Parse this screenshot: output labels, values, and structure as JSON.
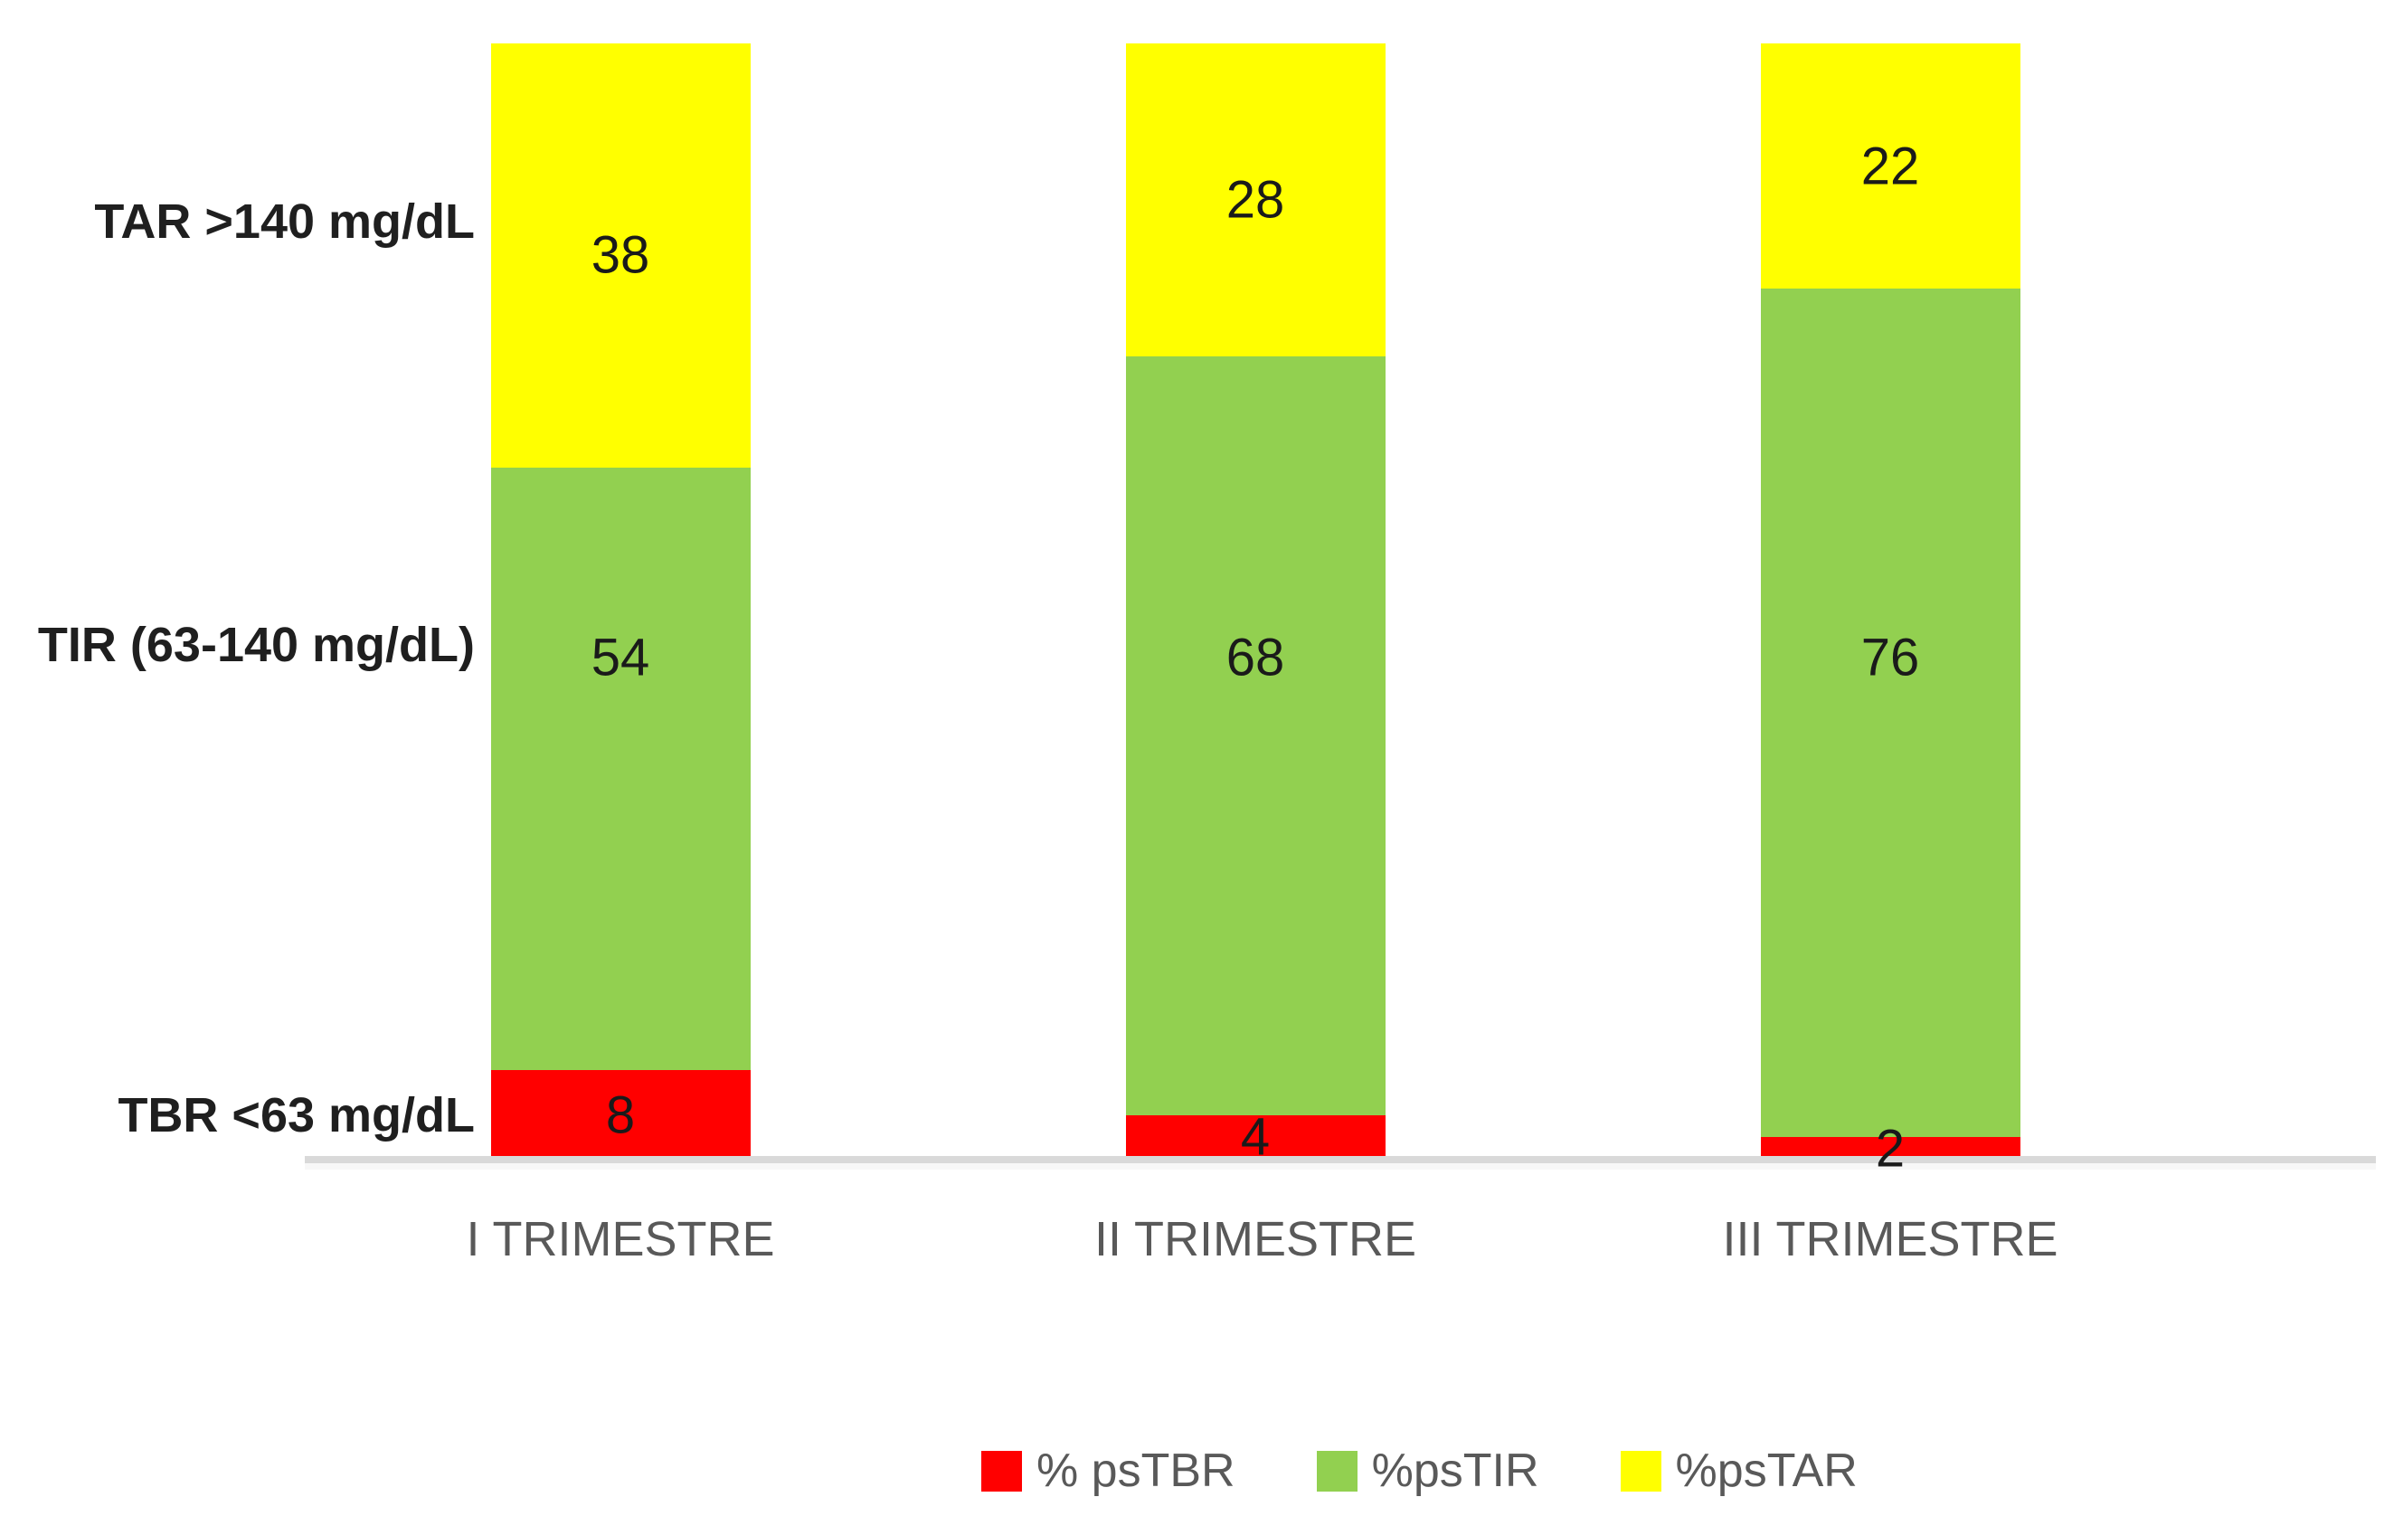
{
  "chart_data": {
    "type": "bar",
    "stacked": true,
    "orientation": "vertical",
    "title": "",
    "categories": [
      "I TRIMESTRE",
      "II TRIMESTRE",
      "III TRIMESTRE"
    ],
    "series": [
      {
        "key": "psTBR",
        "legend_label": "% psTBR",
        "row_label": "TBR <63 mg/dL",
        "color": "#FF0000",
        "values": [
          8,
          4,
          2
        ]
      },
      {
        "key": "psTIR",
        "legend_label": "%psTIR",
        "row_label": "TIR (63-140 mg/dL)",
        "color": "#92D050",
        "values": [
          54,
          68,
          76
        ]
      },
      {
        "key": "psTAR",
        "legend_label": "%psTAR",
        "row_label": "TAR >140 mg/dL",
        "color": "#FFFF00",
        "values": [
          38,
          28,
          22
        ]
      }
    ],
    "ylim": [
      0,
      100
    ],
    "gridlines": false,
    "legend_position": "bottom",
    "axis_line_color": "#D9D9D9",
    "data_label_color": "#1A1A1A",
    "category_label_color": "#595959",
    "row_label_color": "#1F1F1F"
  }
}
